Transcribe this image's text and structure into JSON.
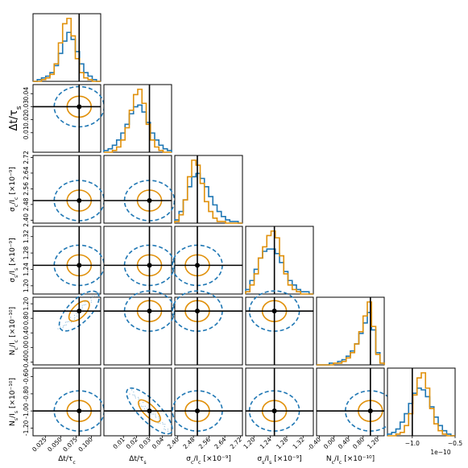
{
  "chart_data": {
    "type": "corner",
    "title": "",
    "colors": {
      "posterior_a": "#1f77b4",
      "posterior_b": "#e0900a",
      "truth": "#000000",
      "frame": "#000000"
    },
    "contours": {
      "posterior_a": "dashed",
      "posterior_b": "solid"
    },
    "parameters": [
      {
        "id": "dt_tc",
        "label_parts": [
          "Δt/τ",
          "c",
          ""
        ],
        "multiplier": "",
        "range": [
          0.005,
          0.115
        ],
        "ticks": [
          "0.025",
          "0.050",
          "0.075",
          "0.100"
        ],
        "tick_values": [
          0.025,
          0.05,
          0.075,
          0.1
        ],
        "truth": 0.08
      },
      {
        "id": "dt_ts",
        "label_parts": [
          "Δt/τ",
          "s",
          ""
        ],
        "multiplier": "",
        "range": [
          -0.005,
          0.047
        ],
        "ticks": [
          "0.01",
          "0.02",
          "0.03",
          "0.04"
        ],
        "tick_values": [
          0.01,
          0.02,
          0.03,
          0.04
        ],
        "truth": 0.03
      },
      {
        "id": "sc_lc",
        "label_parts": [
          "σ",
          "c",
          "/I",
          "c",
          ""
        ],
        "multiplier": "[×10⁻⁹]",
        "range": [
          2.385,
          2.73
        ],
        "ticks": [
          "2.40",
          "2.48",
          "2.56",
          "2.64",
          "2.72"
        ],
        "tick_values": [
          2.4,
          2.48,
          2.56,
          2.64,
          2.72
        ],
        "truth": 2.5
      },
      {
        "id": "ss_ls",
        "label_parts": [
          "σ",
          "s",
          "/I",
          "s",
          ""
        ],
        "multiplier": "[×10⁻⁹]",
        "range": [
          1.18,
          1.345
        ],
        "ticks": [
          "1.20",
          "1.24",
          "1.28",
          "1.32"
        ],
        "tick_values": [
          1.2,
          1.24,
          1.28,
          1.32
        ],
        "truth": 1.25
      },
      {
        "id": "nc_lc",
        "label_parts": [
          "N",
          "c",
          "/I",
          "c",
          ""
        ],
        "multiplier": "[×10⁻¹⁰]",
        "range": [
          -0.48,
          1.38
        ],
        "ticks": [
          "-0.40",
          "0.00",
          "0.40",
          "0.80",
          "1.20"
        ],
        "tick_values": [
          -0.4,
          0.0,
          0.4,
          0.8,
          1.2
        ],
        "truth": 1.0
      },
      {
        "id": "ns_ls",
        "label_parts": [
          "N",
          "s",
          "/I",
          "s",
          ""
        ],
        "multiplier": "[×10⁻¹⁰]",
        "range": [
          -1.29,
          -0.5
        ],
        "ticks": [
          "-1.20",
          "-1.00",
          "-0.80",
          "-0.60"
        ],
        "tick_values": [
          -1.2,
          -1.0,
          -0.8,
          -0.6
        ],
        "truth": -1.0
      }
    ],
    "last_panel": {
      "ticks": [
        "−1.0",
        "−0.5"
      ],
      "tick_values": [
        -1.0,
        -0.5
      ],
      "offset_text": "1e−10"
    },
    "histograms": [
      {
        "posterior_a": [
          0,
          1,
          2,
          3,
          5,
          9,
          16,
          23,
          28,
          24,
          17,
          10,
          5,
          3,
          1,
          0
        ],
        "posterior_b": [
          0,
          0,
          1,
          2,
          4,
          10,
          22,
          33,
          36,
          26,
          13,
          5,
          2,
          1,
          0,
          0
        ]
      },
      {
        "posterior_a": [
          1,
          2,
          4,
          7,
          11,
          16,
          22,
          26,
          27,
          23,
          17,
          11,
          7,
          4,
          2,
          1
        ],
        "posterior_b": [
          0,
          0,
          1,
          3,
          7,
          14,
          24,
          33,
          36,
          28,
          16,
          7,
          3,
          1,
          0,
          0
        ]
      },
      {
        "posterior_a": [
          2,
          7,
          14,
          22,
          28,
          30,
          27,
          22,
          16,
          11,
          7,
          4,
          2,
          1,
          1,
          0
        ],
        "posterior_b": [
          1,
          5,
          14,
          28,
          38,
          35,
          24,
          13,
          7,
          3,
          1,
          1,
          0,
          0,
          0,
          0
        ]
      },
      {
        "posterior_a": [
          2,
          6,
          11,
          16,
          19,
          20,
          20,
          18,
          14,
          10,
          6,
          4,
          2,
          1,
          1,
          0
        ],
        "posterior_b": [
          1,
          4,
          9,
          16,
          21,
          26,
          28,
          25,
          17,
          9,
          4,
          2,
          1,
          0,
          0,
          0
        ]
      },
      {
        "posterior_a": [
          0,
          0,
          0,
          1,
          1,
          2,
          3,
          5,
          8,
          12,
          18,
          24,
          30,
          20,
          7,
          1
        ],
        "posterior_b": [
          0,
          0,
          0,
          0,
          1,
          1,
          2,
          4,
          7,
          12,
          19,
          28,
          36,
          22,
          6,
          1
        ]
      },
      {
        "posterior_a": [
          1,
          2,
          4,
          8,
          13,
          19,
          25,
          28,
          27,
          23,
          17,
          11,
          6,
          3,
          1,
          0
        ],
        "posterior_b": [
          0,
          0,
          1,
          2,
          6,
          13,
          24,
          34,
          37,
          28,
          16,
          7,
          3,
          1,
          0,
          0
        ]
      }
    ],
    "pair_correlations": [
      {
        "row": 4,
        "col": 0,
        "corr": 0.75
      },
      {
        "row": 5,
        "col": 1,
        "corr": -0.85
      }
    ]
  }
}
